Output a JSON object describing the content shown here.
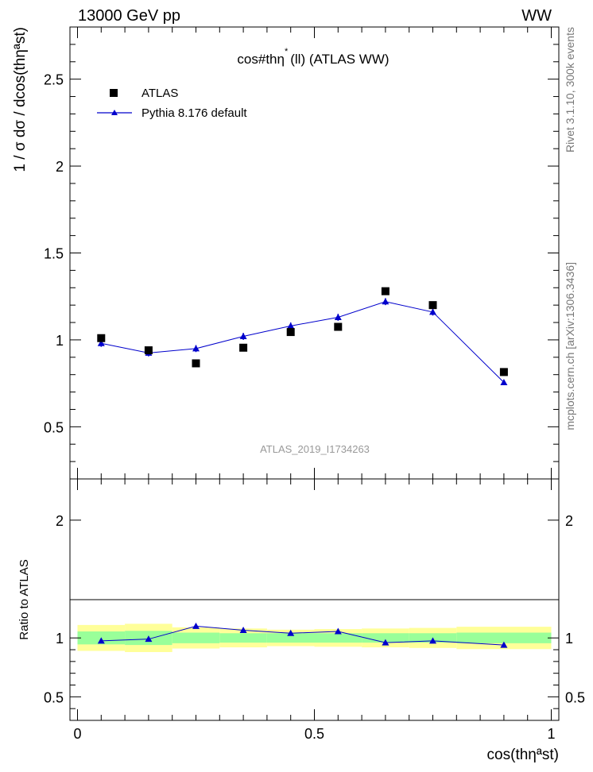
{
  "header": {
    "left": "13000 GeV pp",
    "right": "WW"
  },
  "side_labels": {
    "rivet": "Rivet 3.1.10,  300k events",
    "mcplots": "mcplots.cern.ch [arXiv:1306.3436]"
  },
  "colors": {
    "data": "#000000",
    "mc": "#0000cc",
    "band_outer": "#ffff99",
    "band_inner": "#99ff99"
  },
  "chart_data": {
    "type": "scatter",
    "title_main": "cos#thη",
    "title_sup": "*",
    "title_rest": "(ll) (ATLAS WW)",
    "ylabel": "1 / σ  dσ / dcos(thηªst)",
    "xlabel": "cos(thηªst)",
    "watermark": "ATLAS_2019_I1734263",
    "xlim": [
      0,
      1
    ],
    "ylim": [
      0.2,
      2.8
    ],
    "x_ticks": [
      0,
      0.5,
      1
    ],
    "x_tick_labels": [
      "0",
      "0.5",
      "1"
    ],
    "y_ticks": [
      0.5,
      1,
      1.5,
      2,
      2.5
    ],
    "y_tick_labels": [
      "0.5",
      "1",
      "1.5",
      "2",
      "2.5"
    ],
    "legend": [
      {
        "label": "ATLAS",
        "marker": "square"
      },
      {
        "label": "Pythia 8.176 default",
        "marker": "triangle-line"
      }
    ],
    "bins": [
      {
        "lo": 0.0,
        "hi": 0.1
      },
      {
        "lo": 0.1,
        "hi": 0.2
      },
      {
        "lo": 0.2,
        "hi": 0.3
      },
      {
        "lo": 0.3,
        "hi": 0.4
      },
      {
        "lo": 0.4,
        "hi": 0.5
      },
      {
        "lo": 0.5,
        "hi": 0.6
      },
      {
        "lo": 0.6,
        "hi": 0.7
      },
      {
        "lo": 0.7,
        "hi": 0.8
      },
      {
        "lo": 0.8,
        "hi": 1.0
      }
    ],
    "series": [
      {
        "name": "ATLAS",
        "x": [
          0.05,
          0.15,
          0.25,
          0.35,
          0.45,
          0.55,
          0.65,
          0.75,
          0.9
        ],
        "values": [
          1.01,
          0.94,
          0.865,
          0.955,
          1.045,
          1.075,
          1.28,
          1.2,
          0.815
        ]
      },
      {
        "name": "Pythia 8.176 default",
        "x": [
          0.05,
          0.15,
          0.25,
          0.35,
          0.45,
          0.55,
          0.65,
          0.75,
          0.9
        ],
        "values": [
          0.98,
          0.925,
          0.95,
          1.02,
          1.08,
          1.13,
          1.22,
          1.16,
          0.755
        ],
        "errors": [
          0.02,
          0.02,
          0.02,
          0.02,
          0.02,
          0.02,
          0.02,
          0.02,
          0.01
        ]
      }
    ],
    "ratio": {
      "ylabel": "Ratio to ATLAS",
      "ylim": [
        0.3,
        2.35
      ],
      "y_ticks": [
        0.5,
        1,
        2
      ],
      "y_tick_labels": [
        "0.5",
        "1",
        "2"
      ],
      "values": [
        0.975,
        0.99,
        1.1,
        1.065,
        1.04,
        1.055,
        0.96,
        0.975,
        0.94
      ],
      "band_inner": [
        0.055,
        0.06,
        0.045,
        0.04,
        0.04,
        0.04,
        0.04,
        0.04,
        0.045
      ],
      "band_outer": [
        0.11,
        0.12,
        0.09,
        0.08,
        0.07,
        0.075,
        0.08,
        0.085,
        0.095
      ]
    }
  }
}
